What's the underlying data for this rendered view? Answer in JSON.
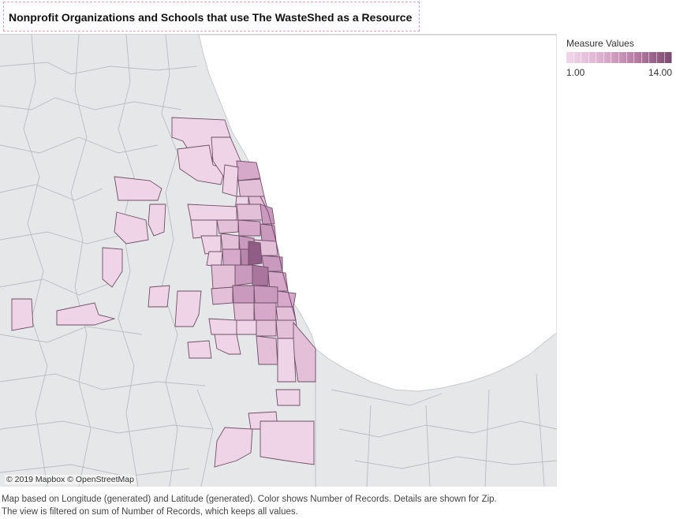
{
  "title": "Nonprofit Organizations and Schools that use The WasteShed as a Resource",
  "legend": {
    "title": "Measure Values",
    "min_label": "1.00",
    "max_label": "14.00",
    "min_value": 1,
    "max_value": 14,
    "color_low": "#f1d7ea",
    "color_high": "#7a4a70"
  },
  "map": {
    "attribution": "© 2019 Mapbox © OpenStreetMap",
    "lake_color": "#ffffff",
    "land_color": "#e6e7e8",
    "boundary_color": "#b9bcc2"
  },
  "caption": {
    "line1": "Map based on Longitude (generated) and Latitude (generated).  Color shows Number of Records.  Details are shown for Zip.",
    "line2": "The view is filtered on sum of Number of Records, which keeps all values."
  }
}
